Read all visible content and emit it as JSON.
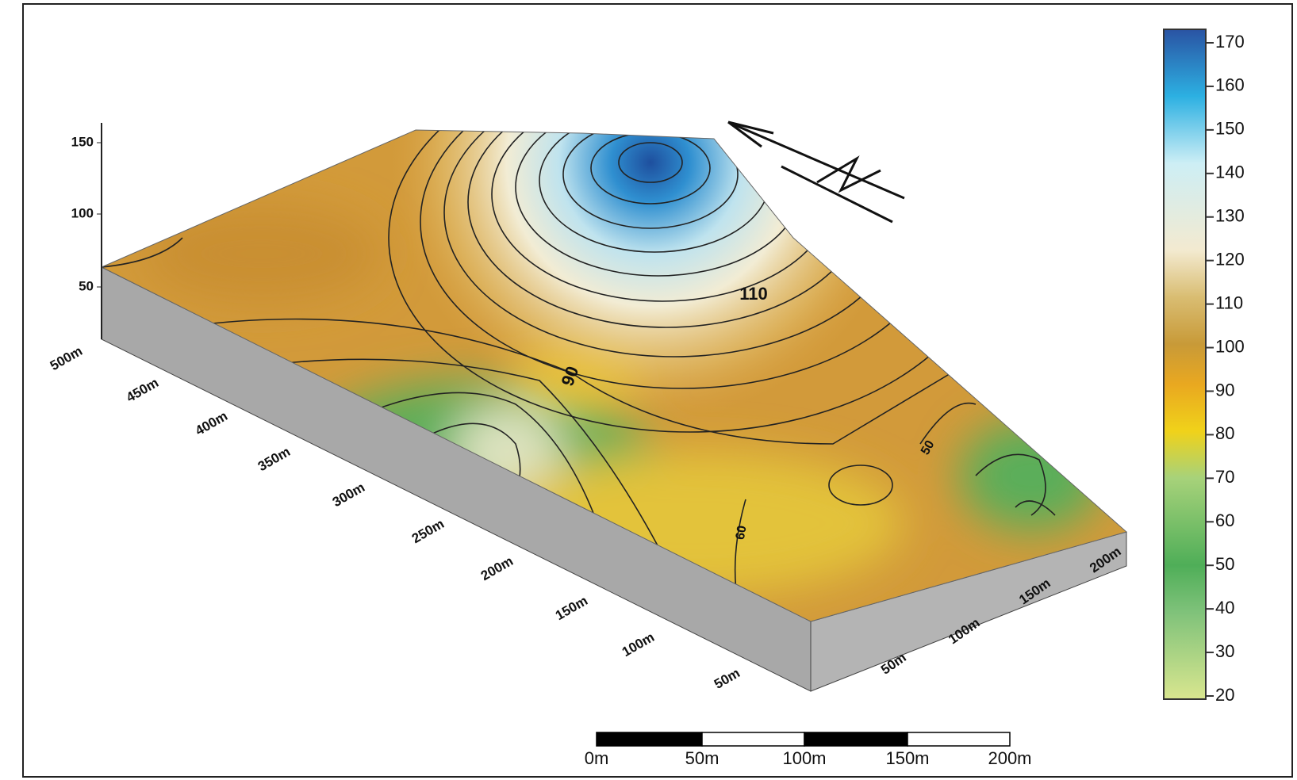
{
  "z_axis": {
    "ticks": [
      "150",
      "100",
      "50"
    ]
  },
  "y_axis": {
    "labels": [
      "500m",
      "450m",
      "400m",
      "350m",
      "300m",
      "250m",
      "200m",
      "150m",
      "100m",
      "50m"
    ]
  },
  "x_axis": {
    "labels": [
      "50m",
      "100m",
      "150m",
      "200m"
    ]
  },
  "contour_labels": [
    "110",
    "90",
    "50",
    "60"
  ],
  "colorbar": {
    "range": [
      20,
      170
    ],
    "ticks": [
      170,
      160,
      150,
      140,
      130,
      120,
      110,
      100,
      90,
      80,
      70,
      60,
      50,
      40,
      30,
      20
    ]
  },
  "scale_bar": {
    "labels": [
      "0m",
      "50m",
      "100m",
      "150m",
      "200m"
    ]
  }
}
